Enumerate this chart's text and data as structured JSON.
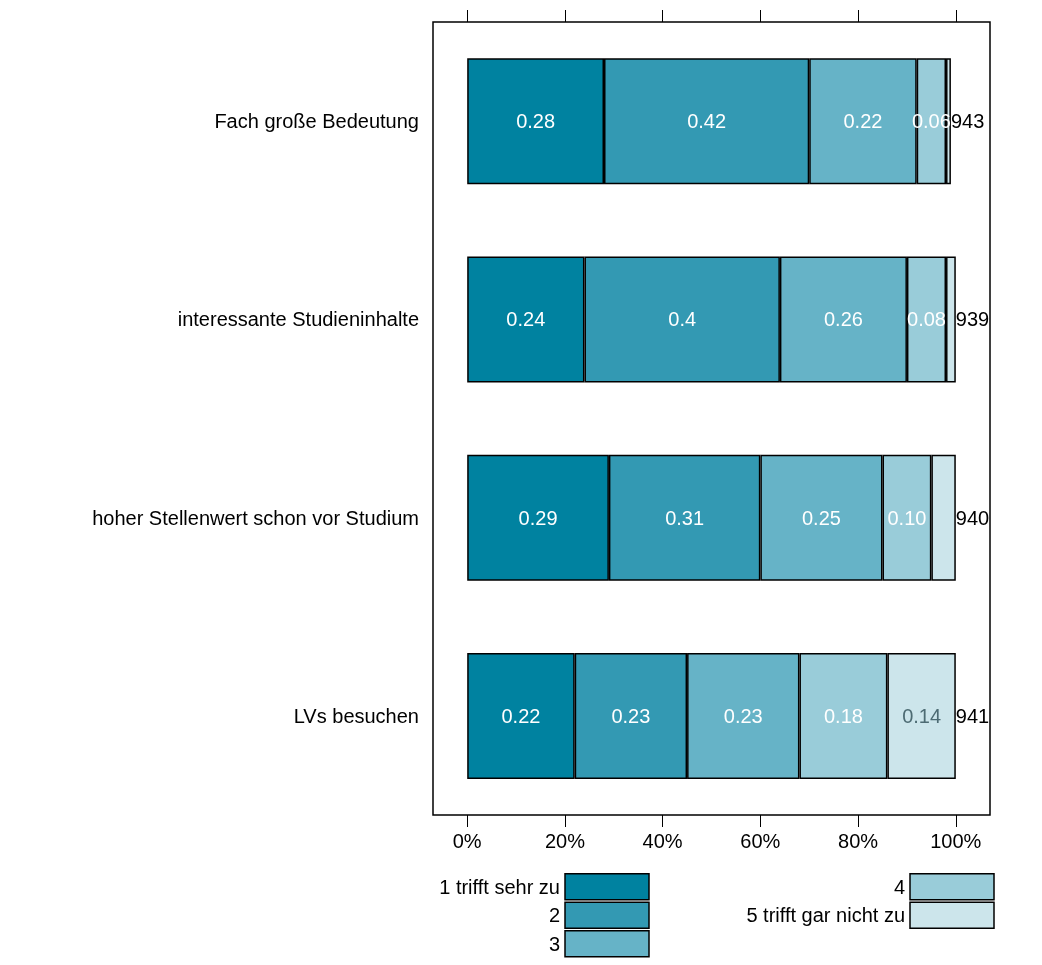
{
  "chart_data": {
    "type": "bar",
    "orientation": "horizontal",
    "stacked": true,
    "categories": [
      "Fach große Bedeutung",
      "interessante Studieninhalte",
      "hoher Stellenwert schon vor Studium",
      "LVs besuchen"
    ],
    "series": [
      {
        "name": "1 trifft sehr zu",
        "color": "#0082a0",
        "values": [
          0.28,
          0.24,
          0.29,
          0.22
        ],
        "value_labels": [
          "0.28",
          "0.24",
          "0.29",
          "0.22"
        ]
      },
      {
        "name": "2",
        "color": "#3399b3",
        "values": [
          0.42,
          0.4,
          0.31,
          0.23
        ],
        "value_labels": [
          "0.42",
          "0.4",
          "0.31",
          "0.23"
        ]
      },
      {
        "name": "3",
        "color": "#66b3c7",
        "values": [
          0.22,
          0.26,
          0.25,
          0.23
        ],
        "value_labels": [
          "0.22",
          "0.26",
          "0.25",
          "0.23"
        ]
      },
      {
        "name": "4",
        "color": "#99ccd9",
        "values": [
          0.06,
          0.08,
          0.1,
          0.18
        ],
        "value_labels": [
          "0.06",
          "0.08",
          "0.10",
          "0.18"
        ]
      },
      {
        "name": "5 trifft gar nicht zu",
        "color": "#cce5eb",
        "values": [
          0.01,
          0.02,
          0.05,
          0.14
        ],
        "value_labels": [
          null,
          null,
          null,
          "0.14"
        ]
      }
    ],
    "xlim": [
      -0.07,
      1.07
    ],
    "xticks": [
      {
        "value": 0,
        "label": "0%"
      },
      {
        "value": 0.2,
        "label": "20%"
      },
      {
        "value": 0.4,
        "label": "40%"
      },
      {
        "value": 0.6,
        "label": "60%"
      },
      {
        "value": 0.8,
        "label": "80%"
      },
      {
        "value": 1,
        "label": "100%"
      }
    ],
    "annotations": [
      "943",
      "939",
      "940",
      "941"
    ],
    "legend": "bottom",
    "grid": false
  }
}
